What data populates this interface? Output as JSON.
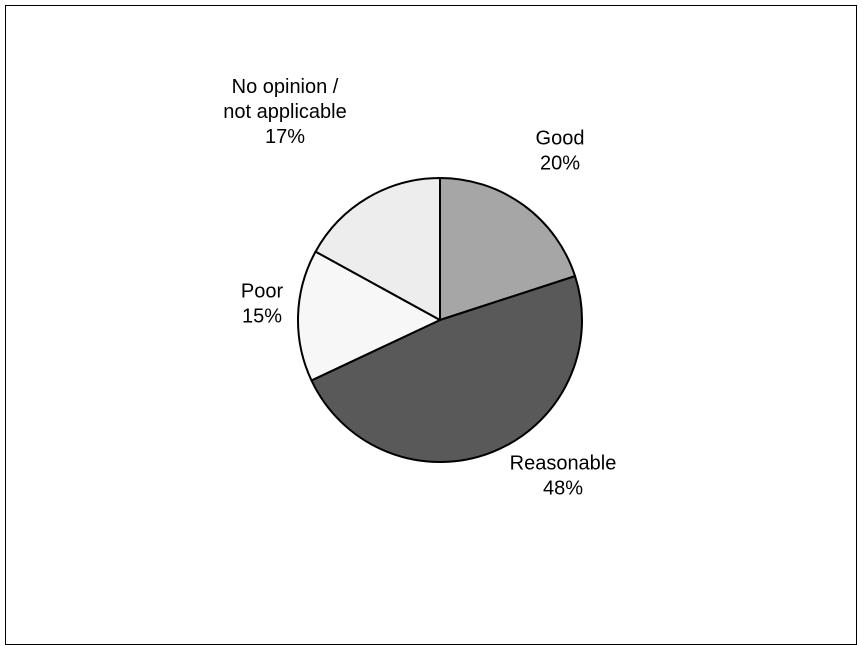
{
  "chart_data": {
    "type": "pie",
    "title": "",
    "start_angle_deg": 0,
    "direction": "clockwise",
    "slices": [
      {
        "label_lines": [
          "Good"
        ],
        "percent_label": "20%",
        "value": 20,
        "color": "#a6a6a6"
      },
      {
        "label_lines": [
          "Reasonable"
        ],
        "percent_label": "48%",
        "value": 48,
        "color": "#595959"
      },
      {
        "label_lines": [
          "Poor"
        ],
        "percent_label": "15%",
        "value": 15,
        "color": "#f7f7f7"
      },
      {
        "label_lines": [
          "No opinion /",
          "not applicable"
        ],
        "percent_label": "17%",
        "value": 17,
        "color": "#ededed"
      }
    ],
    "legend": "none",
    "outline_color": "#000000"
  }
}
